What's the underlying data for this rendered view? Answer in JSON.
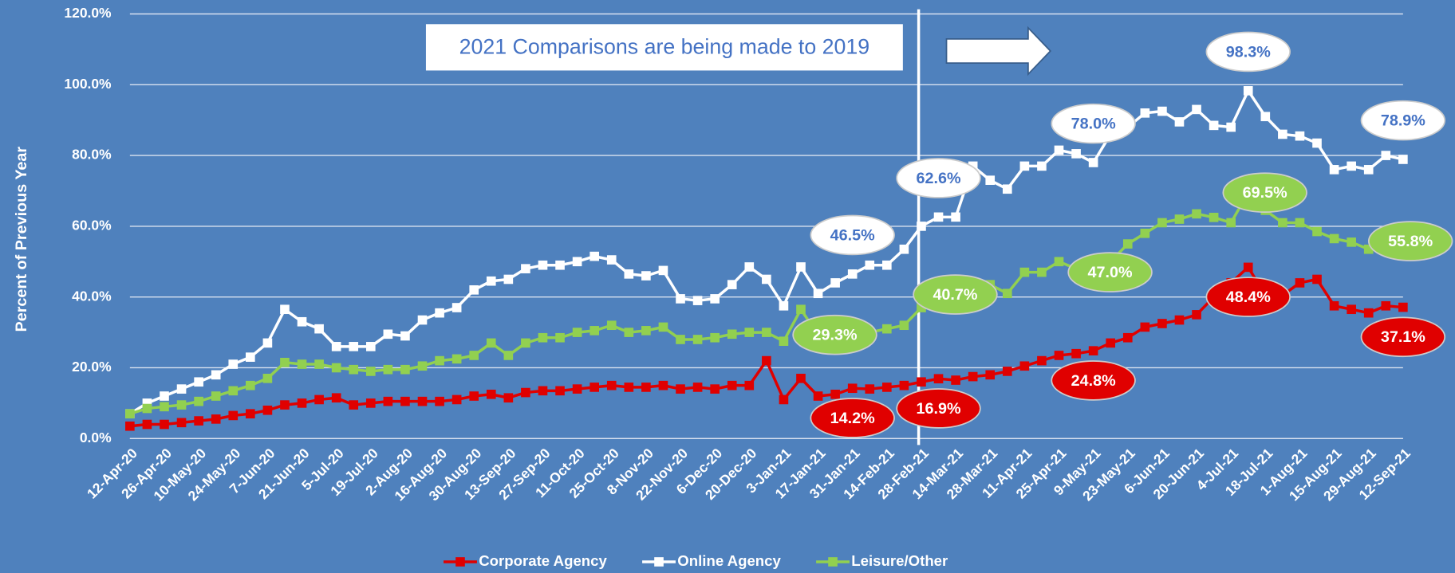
{
  "chart_data": {
    "type": "line",
    "y_label": "Percent of Previous Year",
    "annotation": "2021 Comparisons are being made to 2019",
    "categories": [
      "12-Apr-20",
      null,
      "26-Apr-20",
      null,
      "10-May-20",
      null,
      "24-May-20",
      null,
      "7-Jun-20",
      null,
      "21-Jun-20",
      null,
      "5-Jul-20",
      null,
      "19-Jul-20",
      null,
      "2-Aug-20",
      null,
      "16-Aug-20",
      null,
      "30-Aug-20",
      null,
      "13-Sep-20",
      null,
      "27-Sep-20",
      null,
      "11-Oct-20",
      null,
      "25-Oct-20",
      null,
      "8-Nov-20",
      null,
      "22-Nov-20",
      null,
      "6-Dec-20",
      null,
      "20-Dec-20",
      null,
      "3-Jan-21",
      null,
      "17-Jan-21",
      null,
      "31-Jan-21",
      null,
      "14-Feb-21",
      null,
      "28-Feb-21",
      null,
      "14-Mar-21",
      null,
      "28-Mar-21",
      null,
      "11-Apr-21",
      null,
      "25-Apr-21",
      null,
      "9-May-21",
      null,
      "23-May-21",
      null,
      "6-Jun-21",
      null,
      "20-Jun-21",
      null,
      "4-Jul-21",
      null,
      "18-Jul-21",
      null,
      "1-Aug-21",
      null,
      "15-Aug-21",
      null,
      "29-Aug-21",
      null,
      "12-Sep-21"
    ],
    "ylim": [
      0,
      120
    ],
    "yticks": [
      {
        "value": 0,
        "label": "0.0%"
      },
      {
        "value": 20,
        "label": "20.0%"
      },
      {
        "value": 40,
        "label": "40.0%"
      },
      {
        "value": 60,
        "label": "60.0%"
      },
      {
        "value": 80,
        "label": "80.0%"
      },
      {
        "value": 100,
        "label": "100.0%"
      },
      {
        "value": 120,
        "label": "120.0%"
      }
    ],
    "grid": true,
    "legend": "bottom",
    "series": [
      {
        "name": "Corporate Agency",
        "color": "#e00000",
        "values": [
          3.5,
          4,
          4,
          4.5,
          5,
          5.5,
          6.5,
          7,
          8,
          9.5,
          10,
          11,
          11.5,
          9.5,
          10,
          10.5,
          10.5,
          10.5,
          10.5,
          11,
          12,
          12.5,
          11.5,
          13,
          13.5,
          13.5,
          14,
          14.5,
          15,
          14.5,
          14.5,
          15,
          14,
          14.5,
          14,
          15,
          15,
          22,
          11,
          17,
          12,
          12.5,
          14.2,
          14,
          14.5,
          15,
          16,
          16.9,
          16.5,
          17.5,
          18,
          19,
          20.5,
          22,
          23.5,
          24,
          24.8,
          27,
          28.5,
          31.5,
          32.5,
          33.5,
          35,
          40,
          44,
          48.4,
          40.5,
          40.5,
          44,
          45,
          37.5,
          36.5,
          35.5,
          37.5,
          37.1
        ],
        "value_labels": [
          null,
          null,
          null,
          null,
          null,
          null,
          null,
          null,
          null,
          null,
          null,
          null,
          null,
          null,
          null,
          null,
          null,
          null,
          null,
          null,
          null,
          null,
          null,
          null,
          null,
          null,
          null,
          null,
          null,
          null,
          null,
          null,
          null,
          null,
          null,
          null,
          null,
          null,
          null,
          null,
          null,
          null,
          "14.2%",
          null,
          null,
          null,
          null,
          "16.9%",
          null,
          null,
          null,
          null,
          null,
          null,
          null,
          null,
          "24.8%",
          null,
          null,
          null,
          null,
          null,
          null,
          null,
          null,
          "48.4%",
          null,
          null,
          null,
          null,
          null,
          null,
          null,
          null,
          "37.1%"
        ]
      },
      {
        "name": "Online Agency",
        "color": "#ffffff",
        "values": [
          7,
          10,
          12,
          14,
          16,
          18,
          21,
          23,
          27,
          36.5,
          33,
          31,
          26,
          26,
          26,
          29.5,
          29,
          33.5,
          35.5,
          37,
          42,
          44.5,
          45,
          48,
          49,
          49,
          50,
          51.5,
          50.5,
          46.5,
          46,
          47.5,
          39.5,
          39,
          39.5,
          43.5,
          48.5,
          45,
          37.5,
          48.5,
          41,
          44,
          46.5,
          49,
          49,
          53.5,
          60,
          62.6,
          62.6,
          77,
          73,
          70.5,
          77,
          77,
          81.5,
          80.5,
          78.0,
          86,
          88,
          92,
          92.5,
          89.5,
          93,
          88.5,
          88,
          98.3,
          91,
          86,
          85.5,
          83.5,
          76,
          77,
          76,
          80,
          78.9
        ],
        "value_labels": [
          null,
          null,
          null,
          null,
          null,
          null,
          null,
          null,
          null,
          null,
          null,
          null,
          null,
          null,
          null,
          null,
          null,
          null,
          null,
          null,
          null,
          null,
          null,
          null,
          null,
          null,
          null,
          null,
          null,
          null,
          null,
          null,
          null,
          null,
          null,
          null,
          null,
          null,
          null,
          null,
          null,
          null,
          "46.5%",
          null,
          null,
          null,
          null,
          "62.6%",
          null,
          null,
          null,
          null,
          null,
          null,
          null,
          null,
          "78.0%",
          null,
          null,
          null,
          null,
          null,
          null,
          null,
          null,
          "98.3%",
          null,
          null,
          null,
          null,
          null,
          null,
          null,
          null,
          "78.9%"
        ]
      },
      {
        "name": "Leisure/Other",
        "color": "#92d050",
        "values": [
          7,
          8.5,
          9,
          9.5,
          10.5,
          12,
          13.5,
          15,
          17,
          21.5,
          21,
          21,
          20,
          19.5,
          19,
          19.5,
          19.5,
          20.5,
          22,
          22.5,
          23.5,
          27,
          23.5,
          27,
          28.5,
          28.5,
          30,
          30.5,
          32,
          30,
          30.5,
          31.5,
          28,
          28,
          28.5,
          29.5,
          30,
          30,
          27.5,
          36.5,
          29.3,
          29,
          29.5,
          30,
          31,
          32,
          37,
          40.7,
          42,
          42.5,
          43.5,
          41,
          47,
          47,
          50,
          48,
          47.0,
          50,
          55,
          58,
          61,
          62,
          63.5,
          62.5,
          61,
          69.5,
          64.5,
          61,
          61,
          58.5,
          56.5,
          55.5,
          53.5,
          54,
          55.8
        ],
        "value_labels": [
          null,
          null,
          null,
          null,
          null,
          null,
          null,
          null,
          null,
          null,
          null,
          null,
          null,
          null,
          null,
          null,
          null,
          null,
          null,
          null,
          null,
          null,
          null,
          null,
          null,
          null,
          null,
          null,
          null,
          null,
          null,
          null,
          null,
          null,
          null,
          null,
          null,
          null,
          null,
          null,
          "29.3%",
          null,
          null,
          null,
          null,
          null,
          null,
          "40.7%",
          null,
          null,
          null,
          null,
          null,
          null,
          null,
          null,
          "47.0%",
          null,
          null,
          null,
          null,
          null,
          null,
          null,
          null,
          "69.5%",
          null,
          null,
          null,
          null,
          null,
          null,
          null,
          null,
          "55.8%"
        ]
      }
    ]
  }
}
